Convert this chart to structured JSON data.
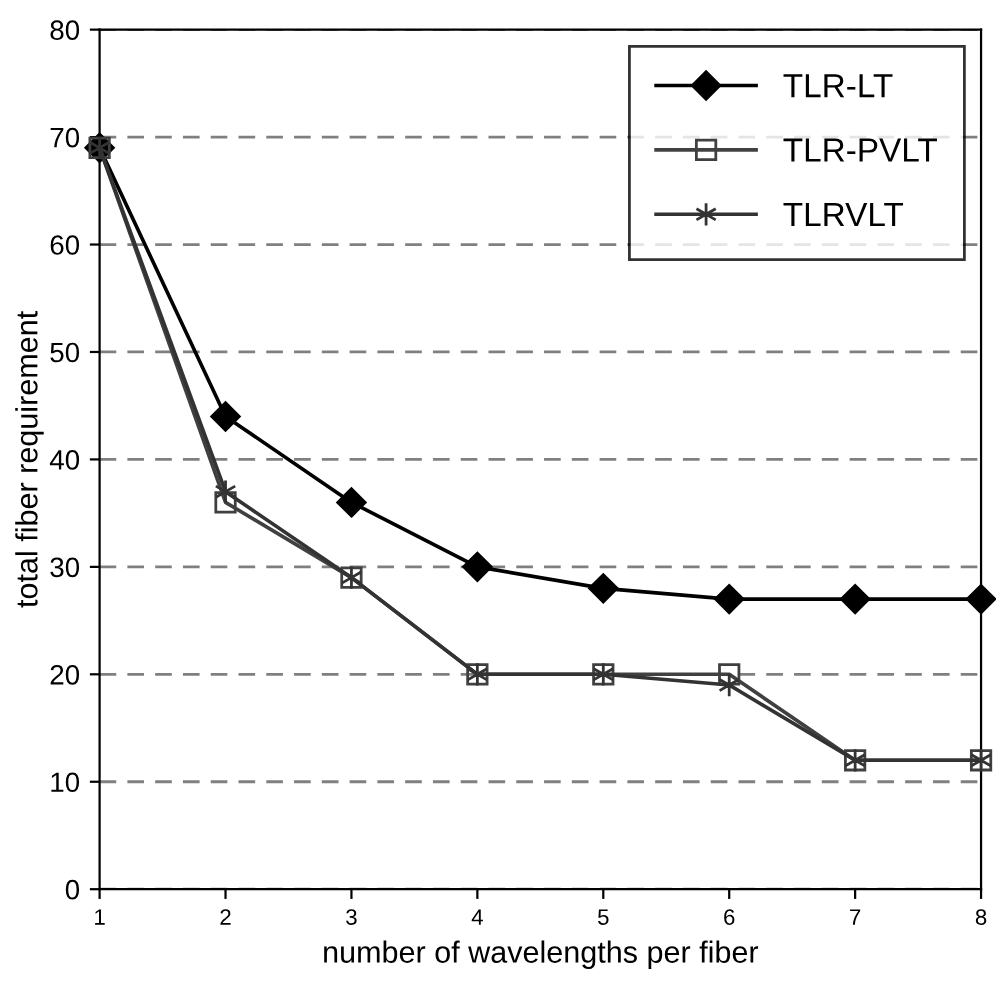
{
  "chart_data": {
    "type": "line",
    "xlabel": "number of wavelengths per fiber",
    "ylabel": "total fiber requirement",
    "x": [
      1,
      2,
      3,
      4,
      5,
      6,
      7,
      8
    ],
    "series": [
      {
        "name": "TLR-LT",
        "color": "#000000",
        "marker": "diamond",
        "values": [
          69,
          44,
          36,
          30,
          28,
          27,
          27,
          27
        ]
      },
      {
        "name": "TLR-PVLT",
        "color": "#404040",
        "marker": "square",
        "values": [
          69,
          36,
          29,
          20,
          20,
          20,
          12,
          12
        ]
      },
      {
        "name": "TLRVLT",
        "color": "#333333",
        "marker": "cross",
        "values": [
          69,
          37,
          29,
          20,
          20,
          19,
          12,
          12
        ]
      }
    ],
    "xlim": [
      1,
      8
    ],
    "xticks": [
      1,
      2,
      3,
      4,
      5,
      6,
      7,
      8
    ],
    "ylim": [
      0,
      80
    ],
    "yticks": [
      0,
      10,
      20,
      30,
      40,
      50,
      60,
      70,
      80
    ],
    "grid": "y",
    "legend": "top right",
    "line_style": "solid"
  }
}
